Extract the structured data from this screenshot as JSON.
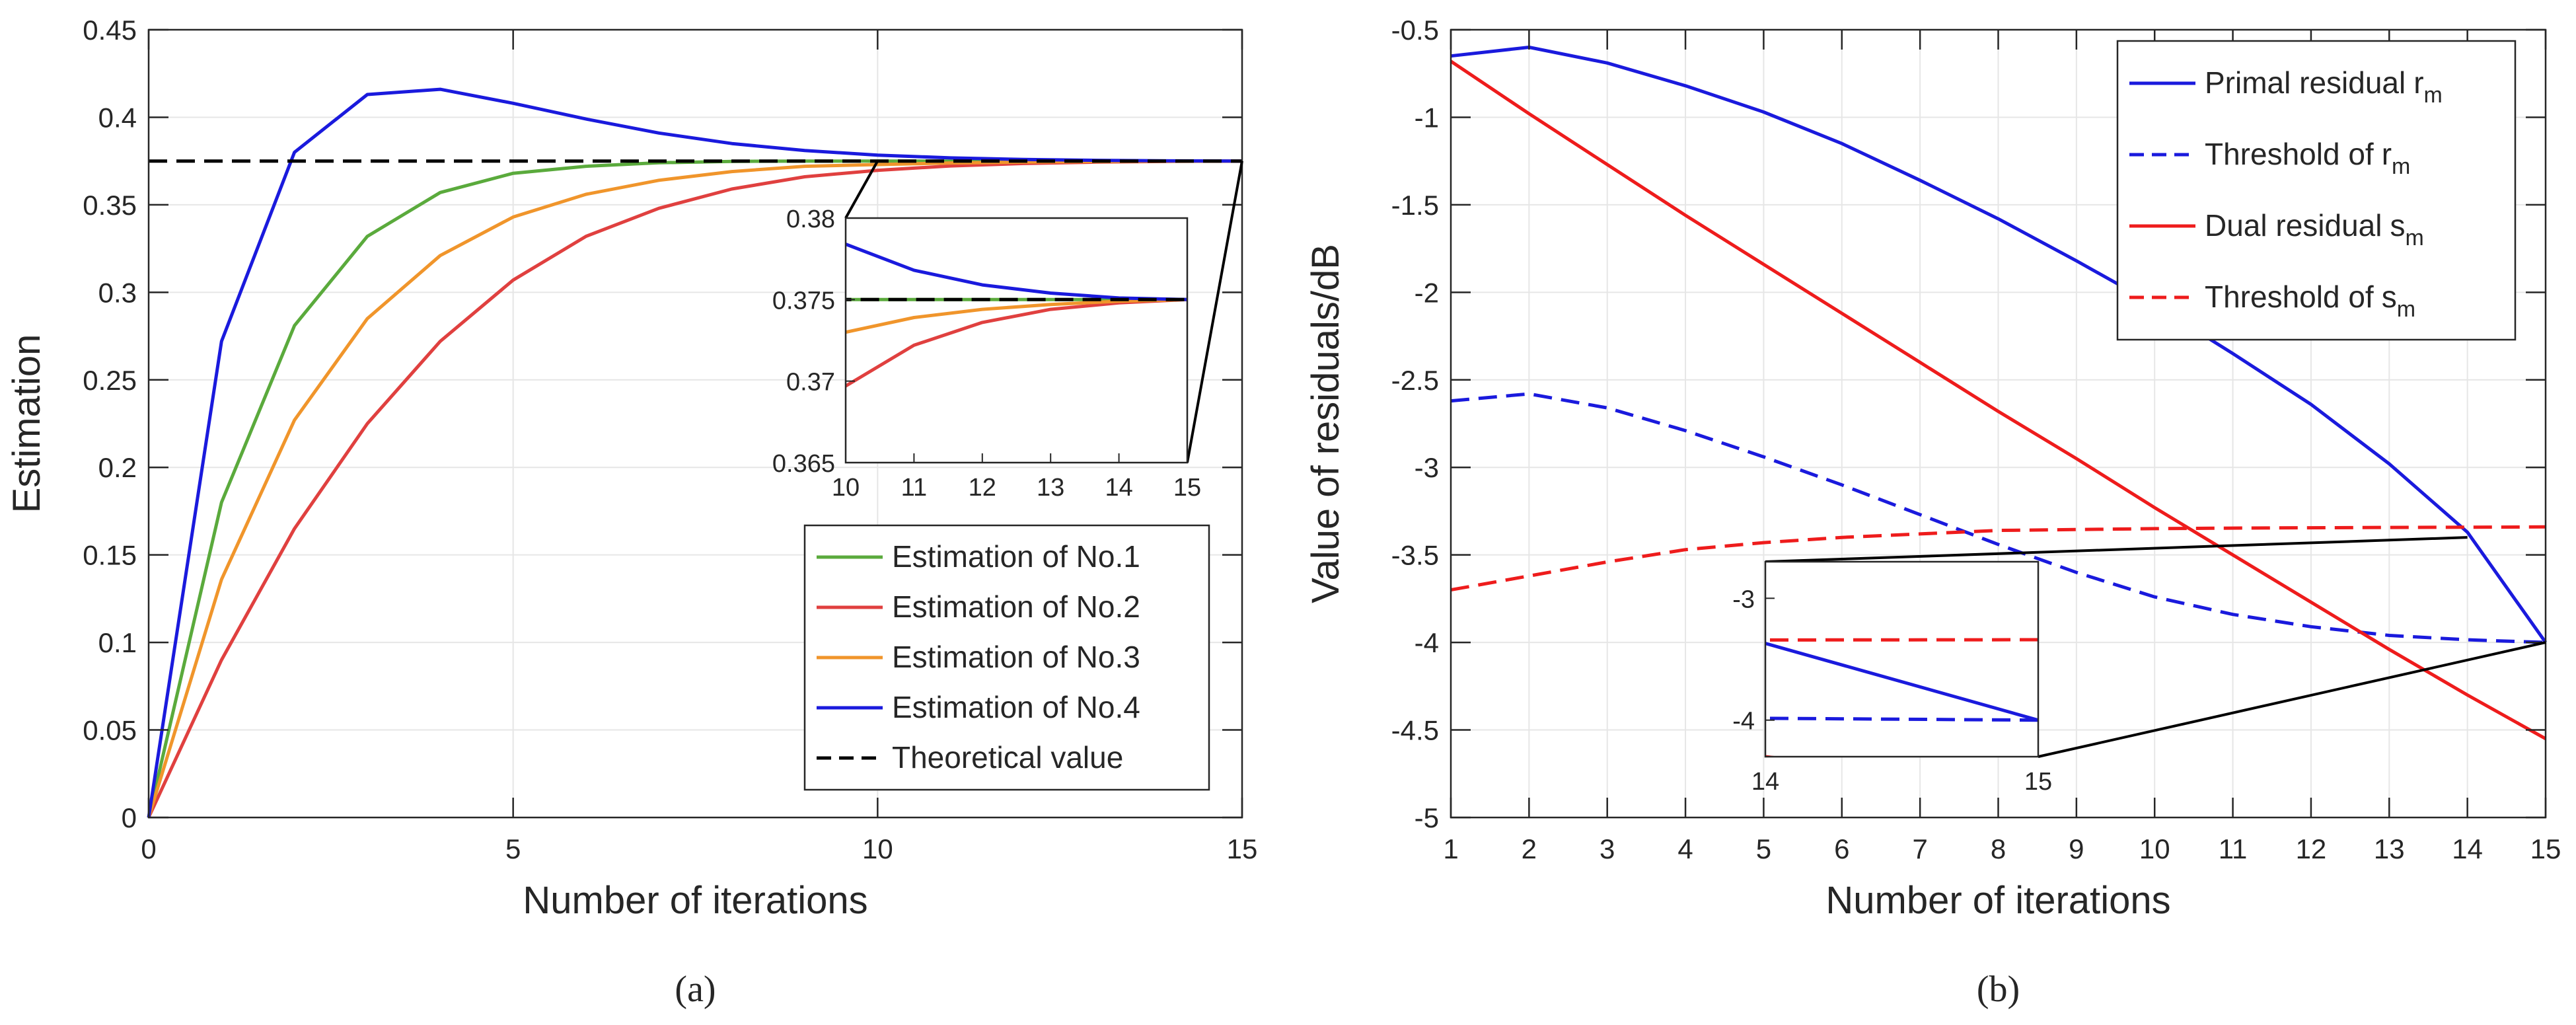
{
  "chart_data": [
    {
      "type": "line",
      "caption": "(a)",
      "xlabel": "Number of iterations",
      "ylabel": "Estimation",
      "xlim": [
        0,
        15
      ],
      "ylim": [
        0,
        0.45
      ],
      "xticks": [
        "0",
        "5",
        "10",
        "15"
      ],
      "yticks": [
        "0",
        "0.05",
        "0.1",
        "0.15",
        "0.2",
        "0.25",
        "0.3",
        "0.35",
        "0.4",
        "0.45"
      ],
      "grid": true,
      "legend_position": "bottom-right",
      "x": [
        0,
        1,
        2,
        3,
        4,
        5,
        6,
        7,
        8,
        9,
        10,
        11,
        12,
        13,
        14,
        15
      ],
      "series": [
        {
          "name": "Estimation of No.1",
          "color": "#5aaa3c",
          "dash": "solid",
          "values": [
            0,
            0.18,
            0.281,
            0.332,
            0.357,
            0.368,
            0.372,
            0.374,
            0.3748,
            0.375,
            0.375,
            0.375,
            0.375,
            0.375,
            0.375,
            0.375
          ]
        },
        {
          "name": "Estimation of No.2",
          "color": "#e0403f",
          "dash": "solid",
          "values": [
            0,
            0.09,
            0.165,
            0.225,
            0.272,
            0.307,
            0.332,
            0.348,
            0.359,
            0.366,
            0.3697,
            0.3722,
            0.3736,
            0.3744,
            0.3748,
            0.375
          ]
        },
        {
          "name": "Estimation of No.3",
          "color": "#f0952b",
          "dash": "solid",
          "values": [
            0,
            0.136,
            0.227,
            0.285,
            0.321,
            0.343,
            0.356,
            0.364,
            0.369,
            0.372,
            0.373,
            0.3739,
            0.3744,
            0.3747,
            0.3749,
            0.375
          ]
        },
        {
          "name": "Estimation of No.4",
          "color": "#1a1add",
          "dash": "solid",
          "values": [
            0,
            0.272,
            0.38,
            0.413,
            0.416,
            0.408,
            0.399,
            0.391,
            0.385,
            0.381,
            0.3784,
            0.3768,
            0.3759,
            0.3754,
            0.3751,
            0.375
          ]
        },
        {
          "name": "Theoretical value",
          "color": "#000000",
          "dash": "dashed",
          "values": [
            0.375,
            0.375,
            0.375,
            0.375,
            0.375,
            0.375,
            0.375,
            0.375,
            0.375,
            0.375,
            0.375,
            0.375,
            0.375,
            0.375,
            0.375,
            0.375
          ]
        }
      ],
      "inset": {
        "xlim": [
          10,
          15
        ],
        "ylim": [
          0.365,
          0.38
        ],
        "xticks": [
          "10",
          "11",
          "12",
          "13",
          "14",
          "15"
        ],
        "yticks": [
          "0.365",
          "0.37",
          "0.375",
          "0.38"
        ]
      }
    },
    {
      "type": "line",
      "caption": "(b)",
      "xlabel": "Number of iterations",
      "ylabel": "Value of residuals/dB",
      "xlim": [
        1,
        15
      ],
      "ylim": [
        -5,
        -0.5
      ],
      "xticks": [
        "1",
        "2",
        "3",
        "4",
        "5",
        "6",
        "7",
        "8",
        "9",
        "10",
        "11",
        "12",
        "13",
        "14",
        "15"
      ],
      "yticks": [
        "-5",
        "-4.5",
        "-4",
        "-3.5",
        "-3",
        "-2.5",
        "-2",
        "-1.5",
        "-1",
        "-0.5"
      ],
      "grid": true,
      "legend_position": "top-right",
      "x": [
        1,
        2,
        3,
        4,
        5,
        6,
        7,
        8,
        9,
        10,
        11,
        12,
        13,
        14,
        15
      ],
      "series": [
        {
          "name": "Primal residual",
          "subscript": "m",
          "symbol": "r",
          "color": "#1a1add",
          "dash": "solid",
          "values": [
            -0.65,
            -0.6,
            -0.69,
            -0.82,
            -0.97,
            -1.15,
            -1.36,
            -1.58,
            -1.82,
            -2.07,
            -2.35,
            -2.64,
            -2.98,
            -3.37,
            -4.0
          ]
        },
        {
          "name": "Threshold of",
          "subscript": "m",
          "symbol": "r",
          "color": "#1a1add",
          "dash": "dashed",
          "values": [
            -2.62,
            -2.58,
            -2.66,
            -2.79,
            -2.94,
            -3.1,
            -3.27,
            -3.44,
            -3.6,
            -3.74,
            -3.84,
            -3.91,
            -3.96,
            -3.985,
            -4.0
          ]
        },
        {
          "name": "Dual residual",
          "subscript": "m",
          "symbol": "s",
          "color": "#ee1c1c",
          "dash": "solid",
          "values": [
            -0.68,
            -0.98,
            -1.27,
            -1.56,
            -1.84,
            -2.12,
            -2.4,
            -2.68,
            -2.95,
            -3.23,
            -3.5,
            -3.77,
            -4.04,
            -4.3,
            -4.55
          ]
        },
        {
          "name": "Threshold of",
          "subscript": "m",
          "symbol": "s",
          "color": "#ee1c1c",
          "dash": "dashed",
          "values": [
            -3.7,
            -3.62,
            -3.54,
            -3.47,
            -3.43,
            -3.4,
            -3.38,
            -3.36,
            -3.355,
            -3.35,
            -3.347,
            -3.345,
            -3.343,
            -3.342,
            -3.34
          ]
        }
      ],
      "inset": {
        "xlim": [
          14,
          15
        ],
        "ylim": [
          -4.3,
          -2.7
        ],
        "xticks": [
          "14",
          "15"
        ],
        "yticks": [
          "-3",
          "-4"
        ]
      }
    }
  ]
}
